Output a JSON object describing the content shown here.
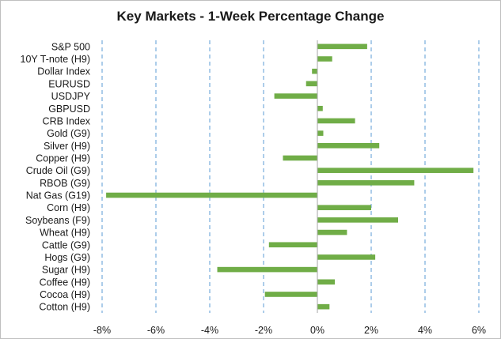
{
  "chart_data": {
    "type": "bar",
    "orientation": "horizontal",
    "title": "Key Markets - 1-Week Percentage Change",
    "categories": [
      "S&P 500",
      "10Y T-note (H9)",
      "Dollar Index",
      "EURUSD",
      "USDJPY",
      "GBPUSD",
      "CRB Index",
      "Gold (G9)",
      "Silver (H9)",
      "Copper (H9)",
      "Crude Oil (G9)",
      "RBOB (G9)",
      "Nat Gas (G19)",
      "Corn (H9)",
      "Soybeans (F9)",
      "Wheat (H9)",
      "Cattle (G9)",
      "Hogs (G9)",
      "Sugar (H9)",
      "Coffee (H9)",
      "Cocoa (H9)",
      "Cotton (H9)"
    ],
    "values": [
      1.85,
      0.55,
      -0.2,
      -0.42,
      -1.6,
      0.2,
      1.4,
      0.22,
      2.3,
      -1.28,
      5.8,
      3.6,
      -7.85,
      2.0,
      3.0,
      1.1,
      -1.8,
      2.15,
      -3.72,
      0.65,
      -1.95,
      0.45
    ],
    "xlim": [
      -8,
      6
    ],
    "xticks": [
      -8,
      -6,
      -4,
      -2,
      0,
      2,
      4,
      6
    ],
    "xtick_labels": [
      "-8%",
      "-6%",
      "-4%",
      "-2%",
      "0%",
      "2%",
      "4%",
      "6%"
    ],
    "grid": "vertical dashed",
    "bar_color": "#70ad47",
    "grid_color": "#5b9bd5",
    "legend": "none"
  }
}
